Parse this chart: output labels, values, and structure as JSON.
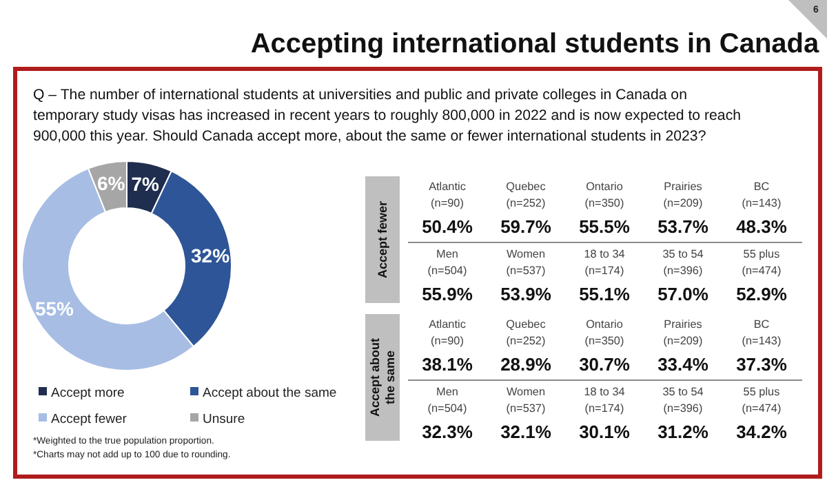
{
  "chart_data": [
    {
      "type": "donut",
      "title": "Accepting international students in Canada",
      "subtitle": "Q – The number of international students at universities and public and private colleges in Canada on temporary study visas has increased in recent years to roughly 800,000 in 2022 and is now expected to reach 900,000 this year. Should Canada accept more, about the same or fewer international students in 2023?",
      "categories": [
        "Accept more",
        "Accept about the same",
        "Accept fewer",
        "Unsure"
      ],
      "values": [
        7,
        32,
        55,
        6
      ],
      "value_labels": [
        "7%",
        "32%",
        "55%",
        "6%"
      ],
      "colors": [
        "#1f2d4e",
        "#2e5597",
        "#a7bde4",
        "#a6a6a6"
      ],
      "legend": "bottom",
      "annotations": [
        "6",
        "*Weighted to the true population proportion.",
        "*Charts may not add up to 100 due to rounding."
      ]
    },
    {
      "type": "other",
      "categories": [
        "Atlantic (n=90)",
        "Quebec (n=252)",
        "Ontario (n=350)",
        "Prairies (n=209)",
        "BC (n=143)",
        "Men (n=504)",
        "Women (n=537)",
        "18 to 34 (n=174)",
        "35 to 54 (n=396)",
        "55 plus (n=474)"
      ],
      "series": [
        {
          "name": "Accept fewer",
          "values": [
            50.4,
            59.7,
            55.5,
            53.7,
            48.3,
            55.9,
            53.9,
            55.1,
            57.0,
            52.9
          ],
          "value_labels": [
            "50.4%",
            "59.7%",
            "55.5%",
            "53.7%",
            "48.3%",
            "55.9%",
            "53.9%",
            "55.1%",
            "57.0%",
            "52.9%"
          ]
        },
        {
          "name": "Accept about the same",
          "values": [
            38.1,
            28.9,
            30.7,
            33.4,
            37.3,
            32.3,
            32.1,
            30.1,
            31.2,
            34.2
          ],
          "value_labels": [
            "38.1%",
            "28.9%",
            "30.7%",
            "33.4%",
            "37.3%",
            "32.3%",
            "32.1%",
            "30.1%",
            "31.2%",
            "34.2%"
          ]
        }
      ]
    }
  ]
}
